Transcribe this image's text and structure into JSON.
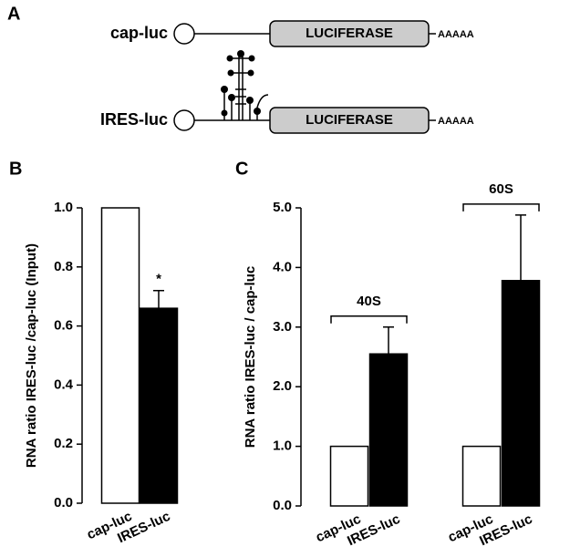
{
  "diagram": {
    "panel": "A",
    "constructs": [
      {
        "name": "cap-luc",
        "gene": "LUCIFERASE",
        "tail": "AAAAA"
      },
      {
        "name": "IRES-luc",
        "gene": "LUCIFERASE",
        "tail": "AAAAA"
      }
    ]
  },
  "chart_data": [
    {
      "type": "bar",
      "panel": "B",
      "y_label": "RNA ratio IRES-luc /cap-luc (Input)",
      "categories": [
        "cap-luc",
        "IRES-luc"
      ],
      "values": [
        1.0,
        0.66
      ],
      "errors": [
        null,
        0.06
      ],
      "annotations": [
        null,
        "*"
      ],
      "colors": [
        "#ffffff",
        "#000000"
      ],
      "ylim": [
        0,
        1
      ],
      "yticks": [
        {
          "value": 0,
          "label": "0.0"
        },
        0.2,
        0.4,
        0.6,
        0.8,
        {
          "value": 1,
          "label": "1.0"
        }
      ]
    },
    {
      "type": "bar",
      "panel": "C",
      "y_label": "RNA ratio IRES-luc / cap-luc",
      "groups": [
        {
          "name": "40S",
          "categories": [
            "cap-luc",
            "IRES-luc"
          ],
          "values": [
            1.0,
            2.55
          ],
          "errors": [
            null,
            0.45
          ]
        },
        {
          "name": "60S",
          "categories": [
            "cap-luc",
            "IRES-luc"
          ],
          "values": [
            1.0,
            3.78
          ],
          "errors": [
            null,
            1.1
          ]
        }
      ],
      "colors": [
        "#ffffff",
        "#000000"
      ],
      "ylim": [
        0,
        5
      ],
      "yticks": [
        {
          "value": 0,
          "label": "0.0"
        },
        {
          "value": 1,
          "label": "1.0"
        },
        {
          "value": 2,
          "label": "2.0"
        },
        {
          "value": 3,
          "label": "3.0"
        },
        {
          "value": 4,
          "label": "4.0"
        },
        {
          "value": 5,
          "label": "5.0"
        }
      ]
    }
  ]
}
